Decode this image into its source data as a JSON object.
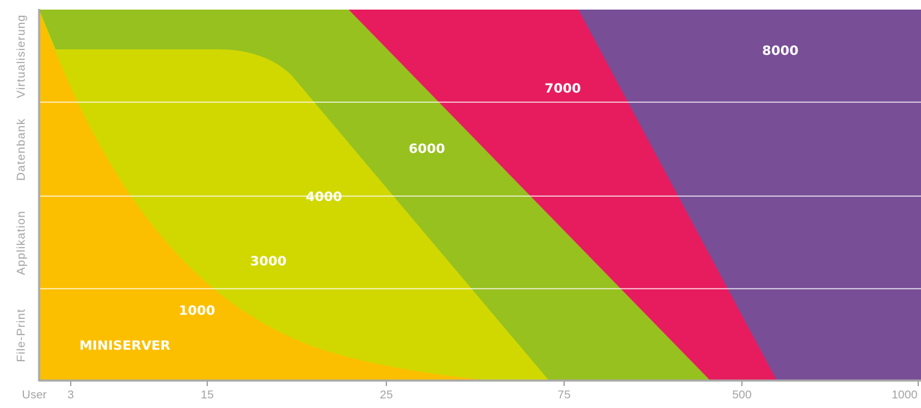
{
  "chart_data": {
    "type": "area",
    "y_categories": [
      "File-Print",
      "Applikation",
      "Datenbank",
      "Virtualisierung"
    ],
    "x_label": "User",
    "x_ticks": [
      "3",
      "15",
      "25",
      "75",
      "500",
      "1000"
    ],
    "series": [
      {
        "name": "8000",
        "color": "#784e97"
      },
      {
        "name": "7000",
        "color": "#e61c5f"
      },
      {
        "name": "6000",
        "color": "#97c11f"
      },
      {
        "name": "4000",
        "color": "#d1d800"
      },
      {
        "name": "3000",
        "color": "#d1d800"
      },
      {
        "name": "1000",
        "color": "#fcbf00"
      },
      {
        "name": "MINISERVER",
        "color": "#fcbf00"
      }
    ],
    "colors": {
      "axis": "#a8a8a8",
      "gridline": "#ffffff",
      "label": "#ffffff",
      "axis_text": "#a3a3a3"
    }
  }
}
